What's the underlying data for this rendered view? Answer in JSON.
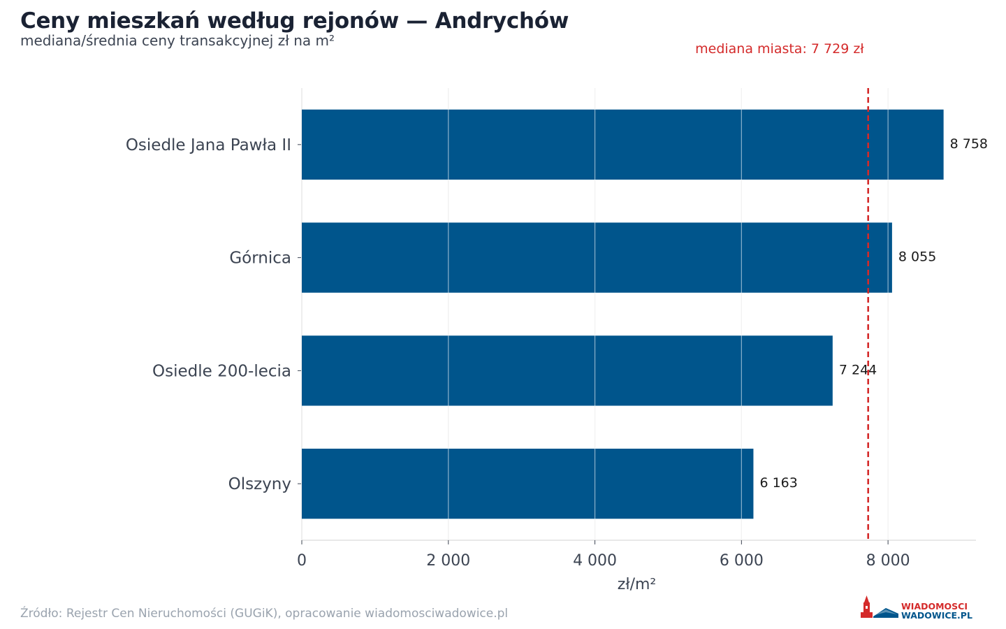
{
  "title": "Ceny mieszkań według rejonów — Andrychów",
  "subtitle": "mediana/średnia ceny transakcyjnej zł na m²",
  "source": "Źródło: Rejestr Cen Nieruchomości (GUGiK), opracowanie wiadomosciwadowice.pl",
  "logo": {
    "line1": "WIADOMOSCI",
    "line2": "WADOWICE.PL"
  },
  "colors": {
    "bar": "#00558c",
    "median_line": "#d42a2a",
    "grid": "#e3e3e3",
    "axis_text": "#3c4452"
  },
  "chart_data": {
    "type": "bar",
    "orientation": "horizontal",
    "categories": [
      "Osiedle Jana Pawła II",
      "Górnica",
      "Osiedle 200-lecia",
      "Olszyny"
    ],
    "values": [
      8758,
      8055,
      7244,
      6163
    ],
    "value_labels": [
      "8 758",
      "8 055",
      "7 244",
      "6 163"
    ],
    "xlabel": "zł/m²",
    "ylabel": "",
    "xlim": [
      0,
      9200
    ],
    "xticks": [
      0,
      2000,
      4000,
      6000,
      8000
    ],
    "xtick_labels": [
      "0",
      "2 000",
      "4 000",
      "6 000",
      "8 000"
    ],
    "grid": true,
    "reference_line": {
      "value": 7729,
      "label": "mediana miasta: 7 729 zł",
      "style": "dashed"
    }
  }
}
